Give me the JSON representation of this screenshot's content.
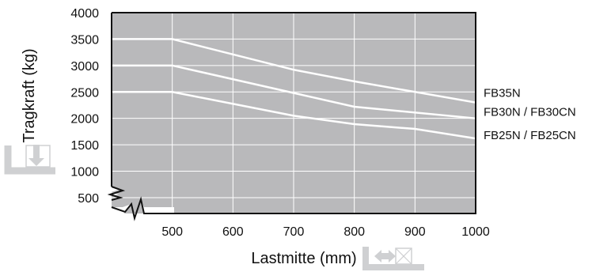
{
  "chart_data": {
    "type": "line",
    "xlabel": "Lastmitte (mm)",
    "ylabel": "Tragkraft (kg)",
    "x_ticks": [
      "500",
      "600",
      "700",
      "800",
      "900",
      "1000"
    ],
    "y_ticks": [
      "500",
      "1000",
      "1500",
      "2000",
      "2500",
      "3000",
      "3500",
      "4000"
    ],
    "xlim": [
      400,
      1000
    ],
    "ylim": [
      200,
      4000
    ],
    "grid": true,
    "axis_break": true,
    "colors": {
      "plot_background": "#b9b9bb",
      "series_line": "#ffffff",
      "grid": "#ffffff",
      "icon": "#cfd0d2"
    },
    "icons": [
      "load-down-arrow-icon",
      "load-center-arrow-icon"
    ],
    "series": [
      {
        "name": "FB35N",
        "x": [
          400,
          500,
          700,
          800,
          1000
        ],
        "y": [
          3500,
          3500,
          2920,
          2700,
          2300
        ]
      },
      {
        "name": "FB30N / FB30CN",
        "x": [
          400,
          500,
          800,
          1000
        ],
        "y": [
          3000,
          3000,
          2220,
          2000
        ]
      },
      {
        "name": "FB25N / FB25CN",
        "x": [
          400,
          500,
          700,
          800,
          900,
          1000
        ],
        "y": [
          2500,
          2500,
          2050,
          1890,
          1800,
          1620
        ]
      }
    ]
  }
}
